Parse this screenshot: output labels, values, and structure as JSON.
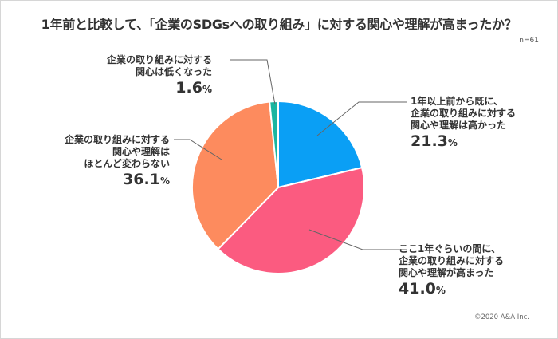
{
  "title": "1年前と比較して、「企業のSDGsへの取り組み」に対する関心や理解が高まったか？",
  "sample_size": "n=61",
  "copyright": "©2020 A&A Inc.",
  "labels": {
    "high_before": {
      "lines": [
        "1年以上前から既に、",
        "企業の取り組みに対する",
        "関心や理解は高かった"
      ],
      "value": "21.3",
      "unit": "%"
    },
    "increased": {
      "lines": [
        "ここ1年ぐらいの間に、",
        "企業の取り組みに対する",
        "関心や理解が高まった"
      ],
      "value": "41.0",
      "unit": "%"
    },
    "unchanged": {
      "lines": [
        "企業の取り組みに対する",
        "関心や理解は",
        "ほとんど変わらない"
      ],
      "value": "36.1",
      "unit": "%"
    },
    "decreased": {
      "lines": [
        "企業の取り組みに対する",
        "関心は低くなった"
      ],
      "value": "1.6",
      "unit": "%"
    }
  },
  "colors": {
    "high_before": "#0a9ff5",
    "increased": "#fb5b80",
    "unchanged": "#fd8b5e",
    "decreased": "#1ab5a0"
  },
  "chart_data": {
    "type": "pie",
    "title": "1年前と比較して、「企業のSDGsへの取り組み」に対する関心や理解が高まったか？",
    "subtitle": "n=61",
    "categories": [
      "1年以上前から既に、企業の取り組みに対する関心や理解は高かった",
      "ここ1年ぐらいの間に、企業の取り組みに対する関心や理解が高まった",
      "企業の取り組みに対する関心や理解はほとんど変わらない",
      "企業の取り組みに対する関心は低くなった"
    ],
    "values": [
      21.3,
      41.0,
      36.1,
      1.6
    ],
    "unit": "%",
    "start_angle": "12 o'clock",
    "direction": "clockwise",
    "legend": "none (callout labels)"
  }
}
